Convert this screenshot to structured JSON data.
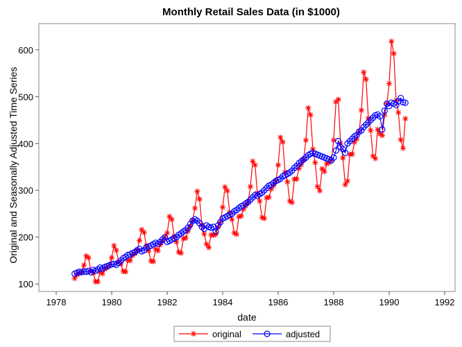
{
  "chart_data": {
    "type": "line",
    "title": "Monthly Retail Sales Data (in $1000)",
    "x_label": "date",
    "y_label": "Original and Seasonally Adjusted Time Series",
    "x": [
      1978.667,
      1978.75,
      1978.833,
      1978.917,
      1979,
      1979.083,
      1979.167,
      1979.25,
      1979.333,
      1979.417,
      1979.5,
      1979.583,
      1979.667,
      1979.75,
      1979.833,
      1979.917,
      1980,
      1980.083,
      1980.167,
      1980.25,
      1980.333,
      1980.417,
      1980.5,
      1980.583,
      1980.667,
      1980.75,
      1980.833,
      1980.917,
      1981,
      1981.083,
      1981.167,
      1981.25,
      1981.333,
      1981.417,
      1981.5,
      1981.583,
      1981.667,
      1981.75,
      1981.833,
      1981.917,
      1982,
      1982.083,
      1982.167,
      1982.25,
      1982.333,
      1982.417,
      1982.5,
      1982.583,
      1982.667,
      1982.75,
      1982.833,
      1982.917,
      1983,
      1983.083,
      1983.167,
      1983.25,
      1983.333,
      1983.417,
      1983.5,
      1983.583,
      1983.667,
      1983.75,
      1983.833,
      1983.917,
      1984,
      1984.083,
      1984.167,
      1984.25,
      1984.333,
      1984.417,
      1984.5,
      1984.583,
      1984.667,
      1984.75,
      1984.833,
      1984.917,
      1985,
      1985.083,
      1985.167,
      1985.25,
      1985.333,
      1985.417,
      1985.5,
      1985.583,
      1985.667,
      1985.75,
      1985.833,
      1985.917,
      1986,
      1986.083,
      1986.167,
      1986.25,
      1986.333,
      1986.417,
      1986.5,
      1986.583,
      1986.667,
      1986.75,
      1986.833,
      1986.917,
      1987,
      1987.083,
      1987.167,
      1987.25,
      1987.333,
      1987.417,
      1987.5,
      1987.583,
      1987.667,
      1987.75,
      1987.833,
      1987.917,
      1988,
      1988.083,
      1988.167,
      1988.25,
      1988.333,
      1988.417,
      1988.5,
      1988.583,
      1988.667,
      1988.75,
      1988.833,
      1988.917,
      1989,
      1989.083,
      1989.167,
      1989.25,
      1989.333,
      1989.417,
      1989.5,
      1989.583,
      1989.667,
      1989.75,
      1989.833,
      1989.917,
      1990,
      1990.083,
      1990.167,
      1990.25,
      1990.333,
      1990.417,
      1990.5,
      1990.583
    ],
    "series": [
      {
        "name": "original",
        "color": "#ff0000",
        "marker": "star",
        "values": [
          112,
          120,
          123,
          125,
          140,
          160,
          156,
          128,
          124,
          105,
          105,
          126,
          122,
          132,
          135,
          140,
          156,
          182,
          172,
          148,
          143,
          127,
          126,
          151,
          150,
          161,
          165,
          172,
          193,
          216,
          210,
          182,
          171,
          149,
          148,
          175,
          171,
          184,
          191,
          200,
          209,
          244,
          238,
          202,
          190,
          168,
          166,
          197,
          198,
          213,
          223,
          235,
          262,
          298,
          281,
          226,
          207,
          185,
          178,
          205,
          204,
          206,
          221,
          232,
          264,
          307,
          299,
          253,
          238,
          209,
          206,
          244,
          245,
          260,
          267,
          275,
          308,
          362,
          354,
          294,
          277,
          242,
          240,
          284,
          285,
          303,
          310,
          320,
          354,
          413,
          403,
          339,
          318,
          277,
          274,
          324,
          324,
          347,
          355,
          366,
          407,
          476,
          461,
          388,
          359,
          308,
          299,
          346,
          340,
          357,
          359,
          364,
          407,
          489,
          494,
          400,
          369,
          312,
          320,
          377,
          377,
          403,
          410,
          425,
          471,
          552,
          537,
          454,
          428,
          373,
          368,
          430,
          421,
          417,
          461,
          485,
          528,
          618,
          592,
          492,
          466,
          408,
          390,
          453
        ]
      },
      {
        "name": "adjusted",
        "color": "#0000ff",
        "marker": "circle",
        "values": [
          122,
          124,
          126,
          125,
          127,
          126,
          128,
          125,
          130,
          128,
          131,
          135,
          133,
          136,
          138,
          140,
          142,
          143,
          141,
          145,
          150,
          155,
          158,
          162,
          163,
          166,
          168,
          172,
          175,
          170,
          172,
          178,
          180,
          182,
          185,
          188,
          186,
          190,
          195,
          200,
          190,
          192,
          195,
          198,
          200,
          205,
          208,
          212,
          215,
          220,
          228,
          235,
          238,
          235,
          230,
          222,
          218,
          225,
          222,
          220,
          222,
          212,
          225,
          232,
          240,
          242,
          245,
          248,
          250,
          255,
          258,
          262,
          266,
          268,
          272,
          275,
          280,
          285,
          290,
          288,
          292,
          295,
          300,
          305,
          310,
          312,
          316,
          320,
          322,
          325,
          330,
          332,
          335,
          338,
          342,
          348,
          352,
          358,
          362,
          366,
          370,
          375,
          378,
          380,
          378,
          376,
          374,
          372,
          370,
          368,
          366,
          364,
          370,
          385,
          405,
          392,
          388,
          380,
          400,
          405,
          410,
          415,
          418,
          425,
          428,
          435,
          440,
          445,
          450,
          455,
          460,
          462,
          458,
          430,
          470,
          485,
          480,
          487,
          485,
          482,
          490,
          497,
          488,
          487
        ]
      }
    ],
    "xlim": [
      1977.375,
      1992.375
    ],
    "xticks": [
      1978,
      1980,
      1982,
      1984,
      1986,
      1988,
      1990,
      1992
    ],
    "ylim": [
      84,
      656
    ],
    "yticks": [
      100,
      200,
      300,
      400,
      500,
      600
    ],
    "legend": "bottom"
  }
}
